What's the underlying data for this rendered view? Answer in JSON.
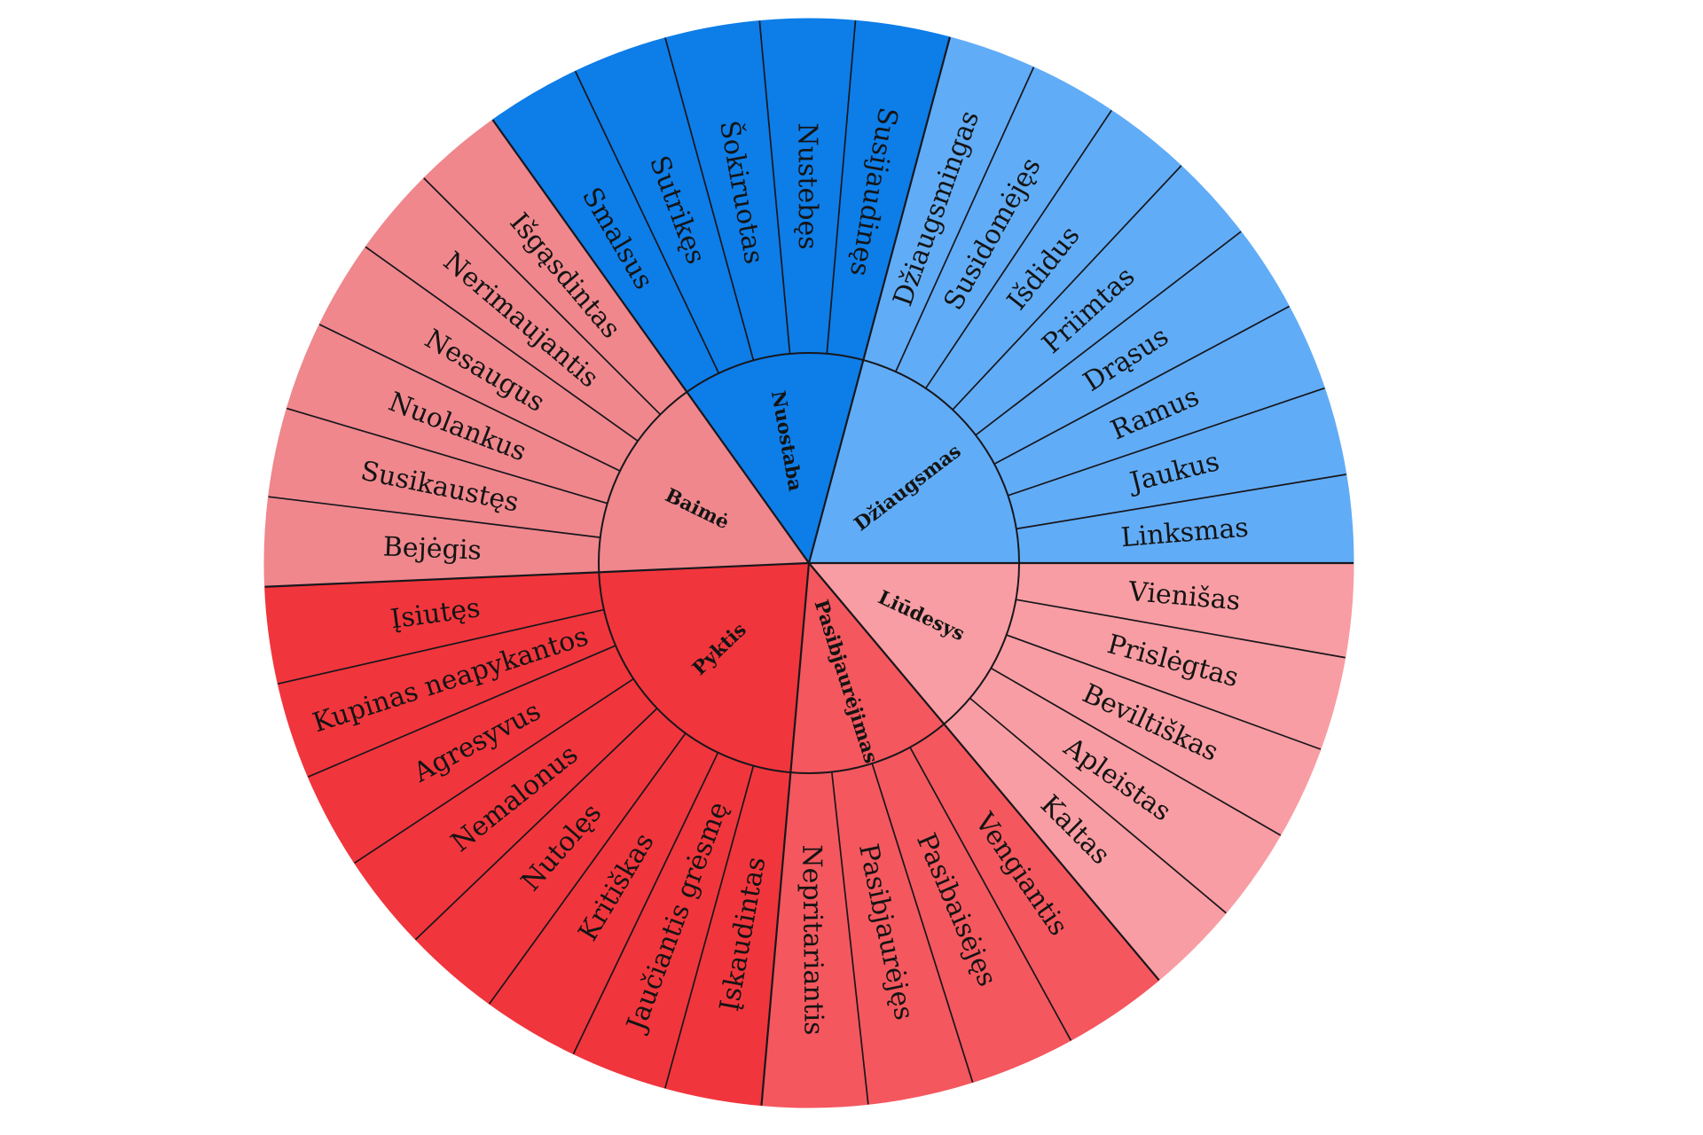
{
  "page": {
    "background": "#ffffff"
  },
  "wheel": {
    "stroke_color": "#17171c",
    "text_color": "#141414",
    "sectors": [
      {
        "name": "Liūdesys",
        "color": "#f89da3",
        "start_deg": 0,
        "end_deg": 50,
        "label_read": "outward",
        "subs": [
          "Vienišas",
          "Prislėgtas",
          "Beviltiškas",
          "Apleistas",
          "Kaltas"
        ]
      },
      {
        "name": "Pasibjaurėjimas",
        "color": "#f4575e",
        "start_deg": 50,
        "end_deg": 95,
        "label_read": "outward",
        "subs": [
          "Vengiantis",
          "Pasibaisėjęs",
          "Pasibjaurėjęs",
          "Nepritariantis"
        ]
      },
      {
        "name": "Pyktis",
        "color": "#f1353c",
        "start_deg": 95,
        "end_deg": 177.5,
        "label_read": "inward",
        "subs": [
          "Įskaudintas",
          "Jaučiantis grėsmę",
          "Kritiškas",
          "Nutolęs",
          "Nemalonus",
          "Agresyvus",
          "Kupinas neapykantos",
          "Įsiutęs"
        ]
      },
      {
        "name": "Baimė",
        "color": "#ef878d",
        "start_deg": 177.5,
        "end_deg": 234.5,
        "label_read": "inward",
        "subs": [
          "Bejėgis",
          "Susikaustęs",
          "Nuolankus",
          "Nesaugus",
          "Nerimaujantis",
          "Išgąsdintas"
        ]
      },
      {
        "name": "Nuostaba",
        "color": "#0d7de8",
        "start_deg": 234.5,
        "end_deg": 285,
        "label_read": "inward",
        "subs": [
          "Smalsus",
          "Sutrikęs",
          "Šokiruotas",
          "Nustebęs",
          "Susijaudinęs"
        ]
      },
      {
        "name": "Džiaugsmas",
        "color": "#61acf7",
        "start_deg": 285,
        "end_deg": 360,
        "label_read": "outward",
        "subs": [
          "Džiaugsmingas",
          "Susidomėjęs",
          "Išdidus",
          "Priimtas",
          "Drąsus",
          "Ramus",
          "Jaukus",
          "Linksmas"
        ]
      }
    ]
  }
}
